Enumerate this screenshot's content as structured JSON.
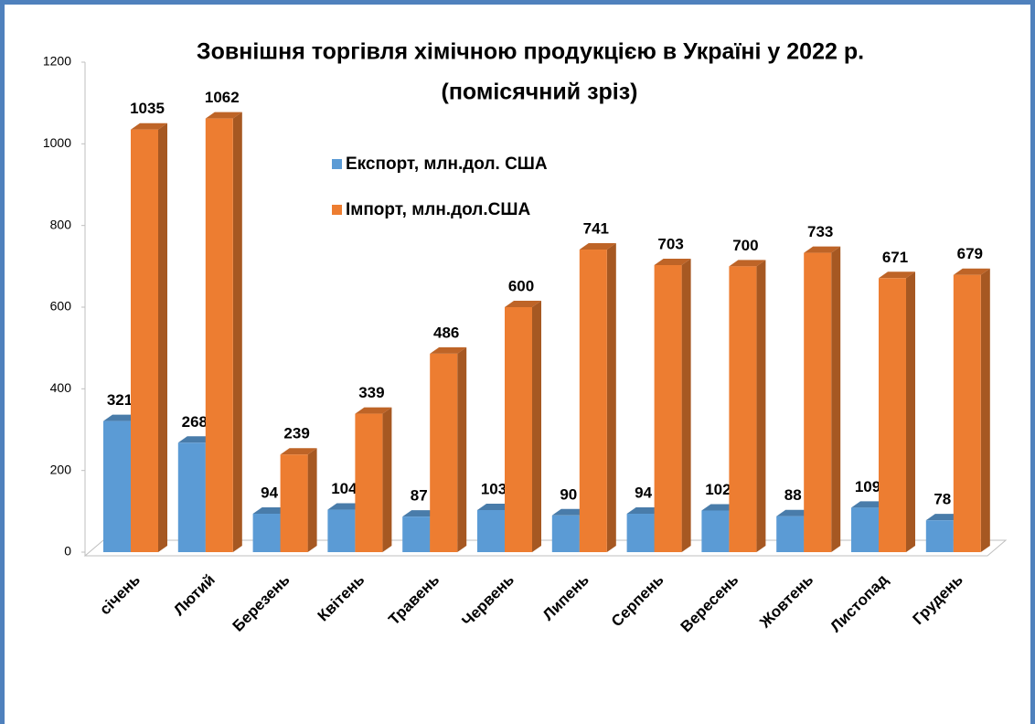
{
  "chart_data": {
    "type": "bar3d",
    "title": "Зовнішня торгівля хімічною  продукцією в Україні у 2022 р.",
    "subtitle": "(помісячний зріз)",
    "categories": [
      "січень",
      "Лютий",
      "Березень",
      "Квітень",
      "Травень",
      "Червень",
      "Липень",
      "Серпень",
      "Вересень",
      "Жовтень",
      "Листопад",
      "Грудень"
    ],
    "series": [
      {
        "name": "Експорт, млн.дол. США",
        "color": "#5b9bd5",
        "values": [
          321,
          268,
          94,
          104,
          87,
          103,
          90,
          94,
          102,
          88,
          109,
          78
        ]
      },
      {
        "name": "Імпорт, млн.дол.США",
        "color": "#ed7d31",
        "values": [
          1035,
          1062,
          239,
          339,
          486,
          600,
          741,
          703,
          700,
          733,
          671,
          679
        ]
      }
    ],
    "ylim": [
      0,
      1200
    ],
    "yticks": [
      0,
      200,
      400,
      600,
      800,
      1000,
      1200
    ],
    "grid": false
  }
}
